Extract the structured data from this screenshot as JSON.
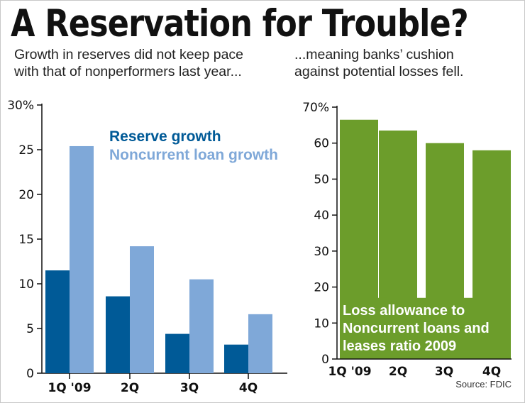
{
  "title": "A Reservation for Trouble?",
  "subtitle_left": "Growth in reserves did not keep pace\nwith that of nonperformers last year...",
  "subtitle_right": "...meaning banks’ cushion\nagainst potential losses fell.",
  "source": "Source: FDIC",
  "colors": {
    "reserve": "#005a97",
    "noncurrent": "#7fa8d8",
    "allowance": "#6c9d2b"
  },
  "chart_data": [
    {
      "type": "bar",
      "categories": [
        "1Q '09",
        "2Q",
        "3Q",
        "4Q"
      ],
      "series": [
        {
          "name": "Reserve growth",
          "values": [
            11.5,
            8.6,
            4.4,
            3.2
          ]
        },
        {
          "name": "Noncurrent loan growth",
          "values": [
            25.4,
            14.2,
            10.5,
            6.6
          ]
        }
      ],
      "ylim": [
        0,
        30
      ],
      "yticks": [
        0,
        5,
        10,
        15,
        20,
        25,
        30
      ],
      "ytick_labels": [
        "0",
        "5",
        "10",
        "15",
        "20",
        "25",
        "30%"
      ],
      "legend_position": "top-right",
      "grid": false
    },
    {
      "type": "bar",
      "categories": [
        "1Q '09",
        "2Q",
        "3Q",
        "4Q"
      ],
      "series": [
        {
          "name": "Loss allowance to Noncurrent loans and leases ratio 2009",
          "values": [
            66.5,
            63.5,
            60,
            58
          ]
        }
      ],
      "series_label_lines": [
        "Loss allowance to",
        "Noncurrent loans and",
        "leases ratio 2009"
      ],
      "ylim": [
        0,
        70
      ],
      "yticks": [
        0,
        10,
        20,
        30,
        40,
        50,
        60,
        70
      ],
      "ytick_labels": [
        "0",
        "10",
        "20",
        "30",
        "40",
        "50",
        "60",
        "70%"
      ],
      "legend_position": "bottom-left",
      "grid": false
    }
  ]
}
